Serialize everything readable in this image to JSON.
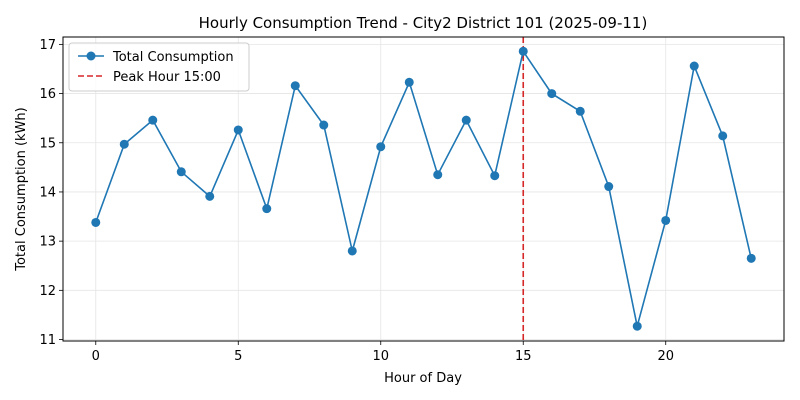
{
  "chart_data": {
    "type": "line",
    "title": "Hourly Consumption Trend - City2 District 101 (2025-09-11)",
    "xlabel": "Hour of Day",
    "ylabel": "Total Consumption (kWh)",
    "xlim": [
      -1.15,
      24.15
    ],
    "ylim": [
      10.97,
      17.15
    ],
    "xticks": [
      0,
      5,
      10,
      15,
      20
    ],
    "yticks": [
      11,
      12,
      13,
      14,
      15,
      16,
      17
    ],
    "grid": true,
    "legend_position": "top-left",
    "series": [
      {
        "name": "Total Consumption",
        "color": "#1f77b4",
        "marker": "circle",
        "x": [
          0,
          1,
          2,
          3,
          4,
          5,
          6,
          7,
          8,
          9,
          10,
          11,
          12,
          13,
          14,
          15,
          16,
          17,
          18,
          19,
          20,
          21,
          22,
          23
        ],
        "y": [
          13.38,
          14.97,
          15.46,
          14.41,
          13.91,
          15.26,
          13.66,
          16.16,
          15.36,
          12.8,
          14.92,
          16.23,
          14.35,
          15.46,
          14.33,
          16.86,
          16.0,
          15.64,
          14.11,
          11.27,
          13.42,
          16.56,
          15.14,
          12.65
        ]
      }
    ],
    "reference_lines": [
      {
        "name": "Peak Hour 15:00",
        "orientation": "vertical",
        "x": 15,
        "color": "#d62728",
        "style": "dashed"
      }
    ]
  }
}
